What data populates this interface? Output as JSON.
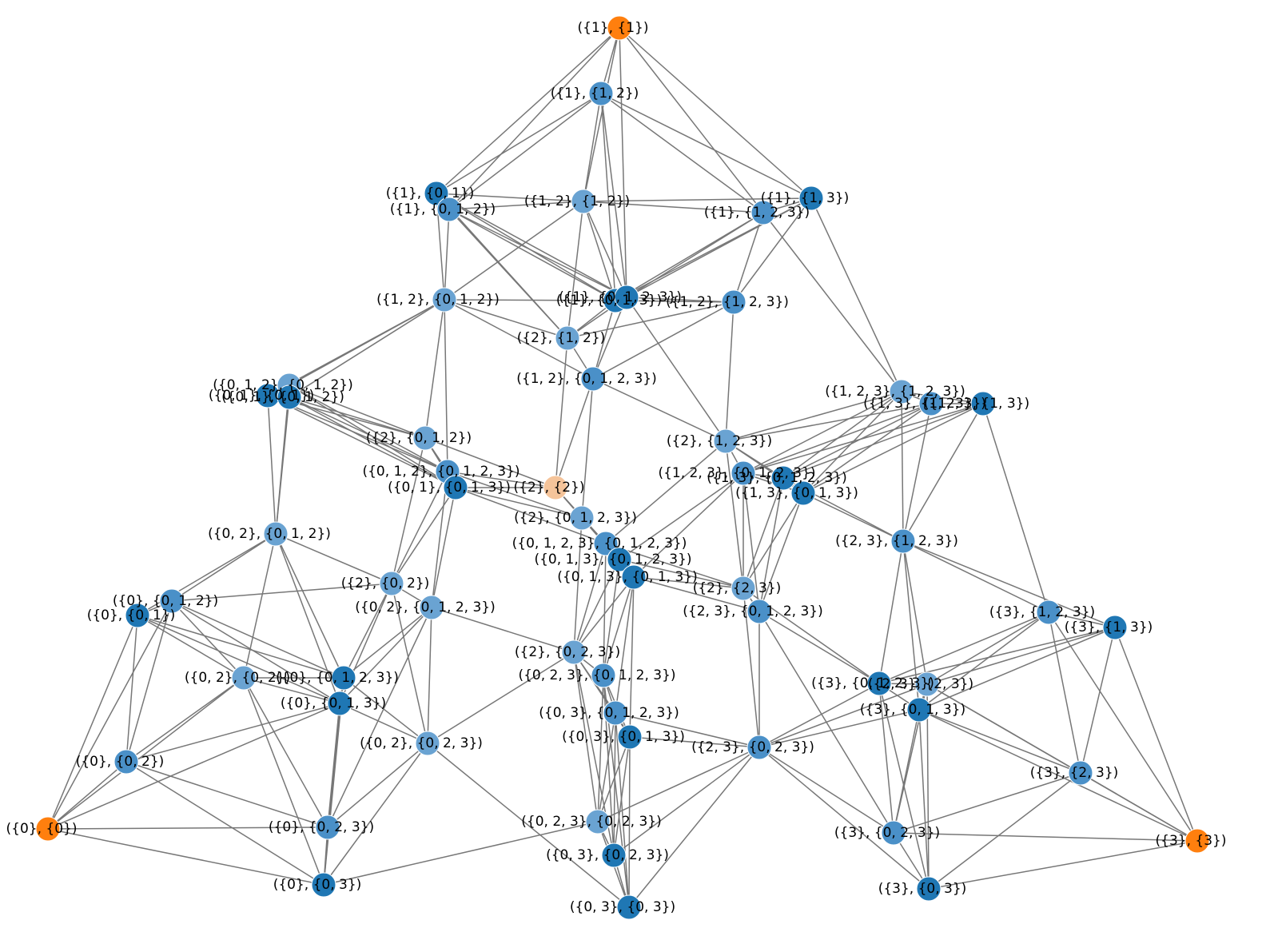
{
  "graph": {
    "nodes": [
      {
        "label": "({1}, {1})",
        "color": "#ff7f0e"
      },
      {
        "label": "({1}, {1, 2})",
        "color": "#4a90c8"
      },
      {
        "label": "({1}, {0, 1})",
        "color": "#1f77b4"
      },
      {
        "label": "({1}, {0, 1, 2})",
        "color": "#4a90c8"
      },
      {
        "label": "({1, 2}, {1, 2})",
        "color": "#6aa3d2"
      },
      {
        "label": "({1}, {1, 3})",
        "color": "#1f77b4"
      },
      {
        "label": "({1}, {1, 2, 3})",
        "color": "#4a90c8"
      },
      {
        "label": "({1, 2}, {0, 1, 2})",
        "color": "#6aa3d2"
      },
      {
        "label": "({1}, {0, 1, 3})",
        "color": "#1f77b4"
      },
      {
        "label": "({1}, {0, 1, 2, 3})",
        "color": "#1f77b4"
      },
      {
        "label": "({1, 2}, {1, 2, 3})",
        "color": "#4a90c8"
      },
      {
        "label": "({2}, {1, 2})",
        "color": "#6aa3d2"
      },
      {
        "label": "({1, 2}, {0, 1, 2, 3})",
        "color": "#4a90c8"
      },
      {
        "label": "({0, 1, 2}, {0, 1, 2})",
        "color": "#6aa3d2"
      },
      {
        "label": "({0, 1}, {0, 1})",
        "color": "#1f77b4"
      },
      {
        "label": "({0, 1}, {0, 1, 2})",
        "color": "#1f77b4"
      },
      {
        "label": "({1, 2, 3}, {1, 2, 3})",
        "color": "#6aa3d2"
      },
      {
        "label": "({1, 3}, {1, 3})",
        "color": "#1f77b4"
      },
      {
        "label": "({1, 3}, {1, 2, 3})",
        "color": "#4a90c8"
      },
      {
        "label": "({2}, {0, 1, 2})",
        "color": "#6aa3d2"
      },
      {
        "label": "({2}, {1, 2, 3})",
        "color": "#6aa3d2"
      },
      {
        "label": "({0, 1, 2}, {0, 1, 2, 3})",
        "color": "#4a90c8"
      },
      {
        "label": "({0, 1}, {0, 1, 3})",
        "color": "#1f77b4"
      },
      {
        "label": "({2}, {2})",
        "color": "#f5c49a"
      },
      {
        "label": "({1, 2, 3}, {0, 1, 2, 3})",
        "color": "#4a90c8"
      },
      {
        "label": "({1, 3}, {0, 1, 2, 3})",
        "color": "#1f77b4"
      },
      {
        "label": "({1, 3}, {0, 1, 3})",
        "color": "#1f77b4"
      },
      {
        "label": "({2}, {0, 1, 2, 3})",
        "color": "#6aa3d2"
      },
      {
        "label": "({0, 2}, {0, 1, 2})",
        "color": "#6aa3d2"
      },
      {
        "label": "({2, 3}, {1, 2, 3})",
        "color": "#4a90c8"
      },
      {
        "label": "({0, 1, 2, 3}, {0, 1, 2, 3})",
        "color": "#4a90c8"
      },
      {
        "label": "({0, 1, 3}, {0, 1, 2, 3})",
        "color": "#1f77b4"
      },
      {
        "label": "({0, 1, 3}, {0, 1, 3})",
        "color": "#1f77b4"
      },
      {
        "label": "({2}, {0, 2})",
        "color": "#6aa3d2"
      },
      {
        "label": "({2}, {2, 3})",
        "color": "#6aa3d2"
      },
      {
        "label": "({0}, {0, 1, 2})",
        "color": "#4a90c8"
      },
      {
        "label": "({0}, {0, 1})",
        "color": "#1f77b4"
      },
      {
        "label": "({0, 2}, {0, 1, 2, 3})",
        "color": "#6aa3d2"
      },
      {
        "label": "({2, 3}, {0, 1, 2, 3})",
        "color": "#4a90c8"
      },
      {
        "label": "({3}, {1, 2, 3})",
        "color": "#4a90c8"
      },
      {
        "label": "({3}, {1, 3})",
        "color": "#1f77b4"
      },
      {
        "label": "({2}, {0, 2, 3})",
        "color": "#6aa3d2"
      },
      {
        "label": "({0, 2}, {0, 2})",
        "color": "#6aa3d2"
      },
      {
        "label": "({0}, {0, 1, 2, 3})",
        "color": "#1f77b4"
      },
      {
        "label": "({0, 2, 3}, {0, 1, 2, 3})",
        "color": "#4a90c8"
      },
      {
        "label": "({3}, {0, 1, 2, 3})",
        "color": "#1f77b4"
      },
      {
        "label": "({2, 3}, {2, 3})",
        "color": "#6aa3d2"
      },
      {
        "label": "({0}, {0, 1, 3})",
        "color": "#1f77b4"
      },
      {
        "label": "({3}, {0, 1, 3})",
        "color": "#1f77b4"
      },
      {
        "label": "({0, 3}, {0, 1, 2, 3})",
        "color": "#4a90c8"
      },
      {
        "label": "({0, 3}, {0, 1, 3})",
        "color": "#1f77b4"
      },
      {
        "label": "({0, 2}, {0, 2, 3})",
        "color": "#6aa3d2"
      },
      {
        "label": "({2, 3}, {0, 2, 3})",
        "color": "#4a90c8"
      },
      {
        "label": "({0}, {0, 2})",
        "color": "#4a90c8"
      },
      {
        "label": "({3}, {2, 3})",
        "color": "#4a90c8"
      },
      {
        "label": "({0}, {0})",
        "color": "#ff7f0e"
      },
      {
        "label": "({0}, {0, 2, 3})",
        "color": "#4a90c8"
      },
      {
        "label": "({0, 2, 3}, {0, 2, 3})",
        "color": "#6aa3d2"
      },
      {
        "label": "({3}, {0, 2, 3})",
        "color": "#4a90c8"
      },
      {
        "label": "({3}, {3})",
        "color": "#ff7f0e"
      },
      {
        "label": "({0, 3}, {0, 2, 3})",
        "color": "#1f77b4"
      },
      {
        "label": "({0}, {0, 3})",
        "color": "#1f77b4"
      },
      {
        "label": "({3}, {0, 3})",
        "color": "#1f77b4"
      },
      {
        "label": "({0, 3}, {0, 3})",
        "color": "#1f77b4"
      }
    ]
  }
}
